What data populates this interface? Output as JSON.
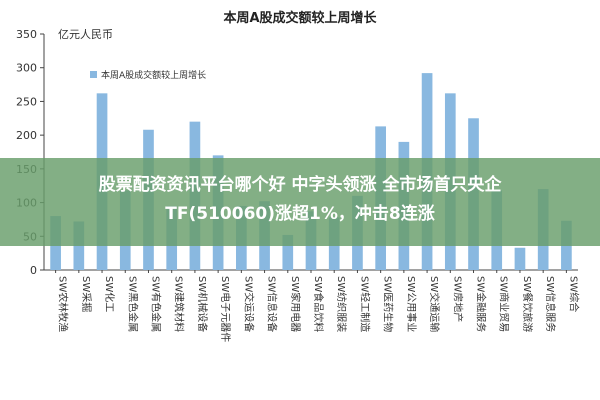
{
  "chart_data": {
    "type": "bar",
    "title": "本周A股成交额较上周增长",
    "unit_label": "亿元人民币",
    "legend": [
      "本周A股成交额较上周增长"
    ],
    "legend_placement": "top-left",
    "ylim": [
      0,
      350
    ],
    "yticks": [
      0,
      50,
      100,
      150,
      200,
      250,
      300,
      350
    ],
    "grid": false,
    "bar_color": "#89b8e0",
    "categories": [
      "SW农林牧渔",
      "SW采掘",
      "SW化工",
      "SW黑色金属",
      "SW有色金属",
      "SW建筑材料",
      "SW机械设备",
      "SW电子元器件",
      "SW交运设备",
      "SW信息设备",
      "SW家用电器",
      "SW食品饮料",
      "SW纺织服装",
      "SW轻工制造",
      "SW医药生物",
      "SW公用事业",
      "SW交通运输",
      "SW房地产",
      "SW金融服务",
      "SW商业贸易",
      "SW餐饮旅游",
      "SW信息服务",
      "SW综合"
    ],
    "values": [
      80,
      72,
      262,
      118,
      208,
      95,
      220,
      170,
      95,
      102,
      52,
      87,
      78,
      110,
      213,
      190,
      292,
      262,
      225,
      118,
      33,
      120,
      73
    ]
  },
  "banner": {
    "line1": "股票配资资讯平台哪个好 中字头领涨 全市场首只央企",
    "line2": "TF(510060)涨超1%，冲击8连涨"
  },
  "colors": {
    "bar": "#89b8e0",
    "banner": "#689e6a",
    "axis": "#444444"
  }
}
